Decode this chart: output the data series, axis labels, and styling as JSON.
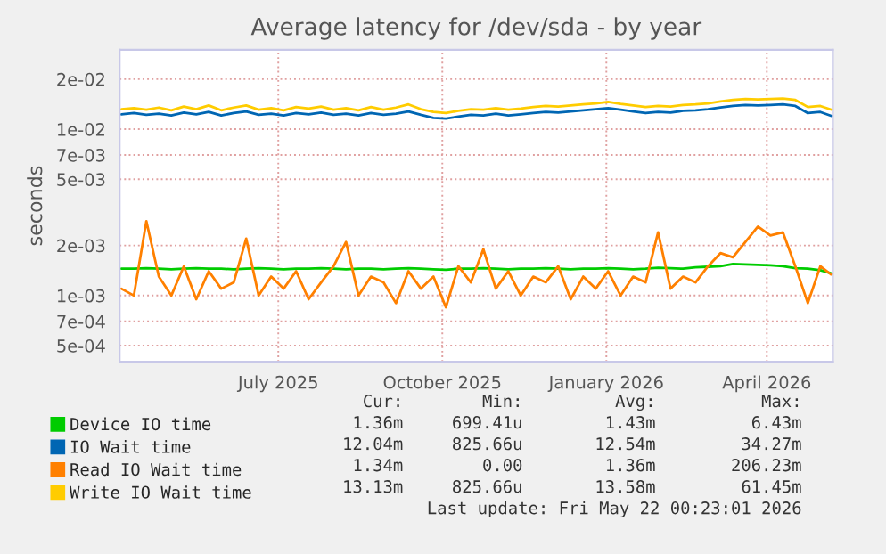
{
  "chart_data": {
    "type": "line",
    "title": "Average latency for /dev/sda - by year",
    "ylabel": "seconds",
    "log": true,
    "grid": true,
    "legend": "bottom",
    "xlim": [
      "2025-04-17",
      "2026-05-22T00:23"
    ],
    "xticks": [
      {
        "value": "2025-07-15",
        "label": "July 2025"
      },
      {
        "value": "2025-10-15",
        "label": "October 2025"
      },
      {
        "value": "2026-01-15",
        "label": "January 2026"
      },
      {
        "value": "2026-04-15",
        "label": "April 2026"
      }
    ],
    "ylim": [
      0.0004,
      0.03
    ],
    "yticks": [
      {
        "value": 0.0005,
        "label": "5e-04"
      },
      {
        "value": 0.0007,
        "label": "7e-04"
      },
      {
        "value": 0.001,
        "label": "1e-03"
      },
      {
        "value": 0.002,
        "label": "2e-03"
      },
      {
        "value": 0.005,
        "label": "5e-03"
      },
      {
        "value": 0.007,
        "label": "7e-03"
      },
      {
        "value": 0.01,
        "label": "1e-02"
      },
      {
        "value": 0.02,
        "label": "2e-02"
      }
    ],
    "x": [
      "2025-04-18",
      "2025-04-25",
      "2025-05-02",
      "2025-05-09",
      "2025-05-16",
      "2025-05-23",
      "2025-05-30",
      "2025-06-06",
      "2025-06-13",
      "2025-06-20",
      "2025-06-27",
      "2025-07-04",
      "2025-07-11",
      "2025-07-18",
      "2025-07-25",
      "2025-08-01",
      "2025-08-08",
      "2025-08-15",
      "2025-08-22",
      "2025-08-29",
      "2025-09-05",
      "2025-09-12",
      "2025-09-19",
      "2025-09-26",
      "2025-10-03",
      "2025-10-10",
      "2025-10-17",
      "2025-10-24",
      "2025-10-31",
      "2025-11-07",
      "2025-11-14",
      "2025-11-21",
      "2025-11-28",
      "2025-12-05",
      "2025-12-12",
      "2025-12-19",
      "2025-12-26",
      "2026-01-02",
      "2026-01-09",
      "2026-01-16",
      "2026-01-23",
      "2026-01-30",
      "2026-02-06",
      "2026-02-13",
      "2026-02-20",
      "2026-02-27",
      "2026-03-06",
      "2026-03-13",
      "2026-03-20",
      "2026-03-27",
      "2026-04-03",
      "2026-04-10",
      "2026-04-17",
      "2026-04-24",
      "2026-05-01",
      "2026-05-08",
      "2026-05-15",
      "2026-05-21"
    ],
    "series": [
      {
        "name": "Device IO time",
        "color": "#00cc00",
        "values": [
          0.00145,
          0.00145,
          0.00146,
          0.00145,
          0.00144,
          0.00145,
          0.00146,
          0.00145,
          0.00145,
          0.00144,
          0.00145,
          0.00146,
          0.00145,
          0.00144,
          0.00145,
          0.00145,
          0.00146,
          0.00145,
          0.00144,
          0.00145,
          0.00145,
          0.00144,
          0.00145,
          0.00146,
          0.00145,
          0.00144,
          0.00143,
          0.00145,
          0.00145,
          0.00146,
          0.00145,
          0.00144,
          0.00145,
          0.00145,
          0.00146,
          0.00145,
          0.00144,
          0.00145,
          0.00145,
          0.00146,
          0.00145,
          0.00144,
          0.00145,
          0.00147,
          0.00146,
          0.00145,
          0.00148,
          0.00149,
          0.0015,
          0.00155,
          0.00154,
          0.00153,
          0.00152,
          0.0015,
          0.00146,
          0.00145,
          0.00142,
          0.00136
        ]
      },
      {
        "name": "IO Wait time",
        "color": "#0066b3",
        "values": [
          0.0123,
          0.0125,
          0.0122,
          0.0124,
          0.0121,
          0.0126,
          0.0123,
          0.0127,
          0.0121,
          0.0125,
          0.0128,
          0.0122,
          0.0124,
          0.0121,
          0.0125,
          0.0123,
          0.0126,
          0.0122,
          0.0124,
          0.0121,
          0.0125,
          0.0122,
          0.0124,
          0.0128,
          0.0122,
          0.0117,
          0.0116,
          0.0119,
          0.0122,
          0.0121,
          0.0124,
          0.0121,
          0.0123,
          0.0125,
          0.0127,
          0.0126,
          0.0128,
          0.013,
          0.0132,
          0.0134,
          0.0131,
          0.0128,
          0.0125,
          0.0127,
          0.0126,
          0.0129,
          0.013,
          0.0132,
          0.0135,
          0.0138,
          0.014,
          0.0139,
          0.014,
          0.0141,
          0.0138,
          0.0125,
          0.0127,
          0.01204
        ]
      },
      {
        "name": "Read IO Wait time",
        "color": "#ff8000",
        "values": [
          0.0011,
          0.001,
          0.0028,
          0.0013,
          0.001,
          0.0015,
          0.00095,
          0.0014,
          0.0011,
          0.0012,
          0.0022,
          0.001,
          0.0013,
          0.0011,
          0.0014,
          0.00095,
          0.0012,
          0.0015,
          0.0021,
          0.001,
          0.0013,
          0.0012,
          0.0009,
          0.0014,
          0.0011,
          0.0013,
          0.00085,
          0.0015,
          0.0012,
          0.0019,
          0.0011,
          0.0014,
          0.001,
          0.0013,
          0.0012,
          0.0015,
          0.00095,
          0.0013,
          0.0011,
          0.0014,
          0.001,
          0.0013,
          0.0012,
          0.0024,
          0.0011,
          0.0013,
          0.0012,
          0.0015,
          0.0018,
          0.0017,
          0.0021,
          0.0026,
          0.0023,
          0.0024,
          0.0015,
          0.0009,
          0.0015,
          0.00134
        ]
      },
      {
        "name": "Write IO Wait time",
        "color": "#ffcc00",
        "values": [
          0.0132,
          0.0134,
          0.0131,
          0.0135,
          0.013,
          0.0137,
          0.0132,
          0.0139,
          0.013,
          0.0135,
          0.0139,
          0.0131,
          0.0134,
          0.013,
          0.0136,
          0.0133,
          0.0137,
          0.0131,
          0.0134,
          0.013,
          0.0136,
          0.0131,
          0.0135,
          0.0141,
          0.0132,
          0.0127,
          0.0125,
          0.0129,
          0.0132,
          0.0131,
          0.0134,
          0.0131,
          0.0133,
          0.0136,
          0.0138,
          0.0137,
          0.0139,
          0.0141,
          0.0143,
          0.0146,
          0.0142,
          0.0139,
          0.0136,
          0.0138,
          0.0137,
          0.014,
          0.0141,
          0.0143,
          0.0147,
          0.015,
          0.0152,
          0.0151,
          0.0152,
          0.0153,
          0.015,
          0.0136,
          0.0138,
          0.01313
        ]
      }
    ],
    "annotations": [
      "Cur:",
      "Min:",
      "Avg:",
      "Max:",
      "1.36m",
      "699.41u",
      "1.43m",
      "6.43m",
      "12.04m",
      "825.66u",
      "12.54m",
      "34.27m",
      "1.34m",
      "0.00",
      "1.36m",
      "206.23m",
      "13.13m",
      "825.66u",
      "13.58m",
      "61.45m",
      "Last update: Fri May 22 00:23:01 2026"
    ]
  }
}
